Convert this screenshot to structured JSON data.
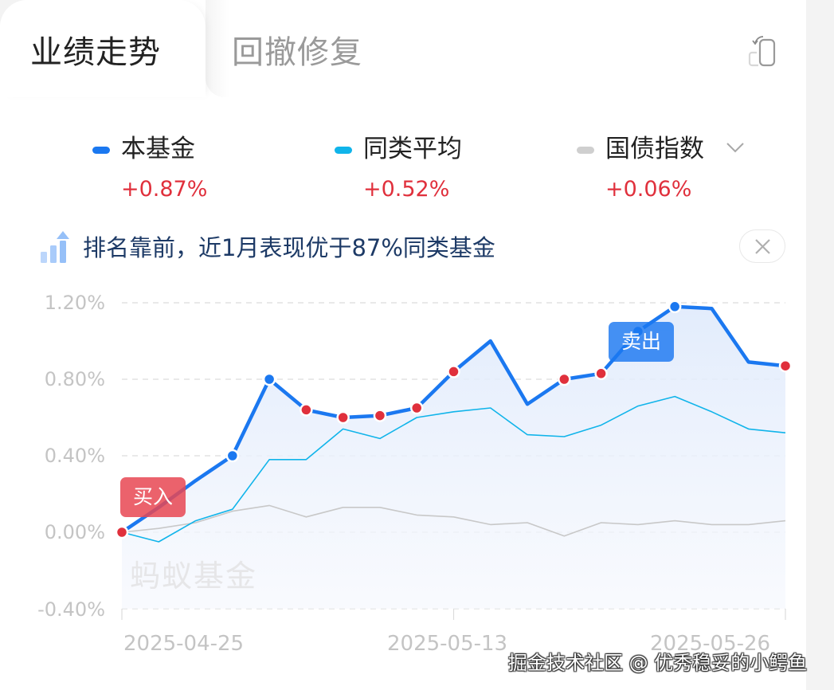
{
  "tabs": [
    {
      "label": "业绩走势",
      "active": true
    },
    {
      "label": "回撤修复",
      "active": false
    }
  ],
  "header_icon": "rotate-screen-icon",
  "legend": [
    {
      "name": "本基金",
      "value": "+0.87%",
      "color": "#1b78f0"
    },
    {
      "name": "同类平均",
      "value": "+0.52%",
      "color": "#10b4ea"
    },
    {
      "name": "国债指数",
      "value": "+0.06%",
      "color": "#cfcfcf",
      "has_dropdown": true
    }
  ],
  "notice": {
    "text": "排名靠前，近1月表现优于87%同类基金",
    "icon": "rising-bar-chart-icon",
    "close_icon": "close-icon"
  },
  "chart_watermark": "蚂蚁基金",
  "markers": {
    "buy": "买入",
    "sell": "卖出"
  },
  "footer_watermark": "掘金技术社区 @ 优秀稳妥的小鳄鱼",
  "chart_data": {
    "type": "line",
    "title": "业绩走势",
    "xlabel": "",
    "ylabel": "",
    "ylim": [
      -0.4,
      1.2
    ],
    "yticks": [
      "1.20%",
      "0.80%",
      "0.40%",
      "0.00%",
      "-0.40%"
    ],
    "xtick_labels": [
      "2025-04-25",
      "2025-05-13",
      "2025-05-26"
    ],
    "grid": true,
    "legend_position": "top",
    "x": [
      0,
      1,
      2,
      3,
      4,
      5,
      6,
      7,
      8,
      9,
      10,
      11,
      12,
      13,
      14,
      15,
      16,
      17,
      18
    ],
    "series": [
      {
        "name": "本基金",
        "color": "#1b78f0",
        "values": [
          0.0,
          0.13,
          0.27,
          0.4,
          0.8,
          0.64,
          0.6,
          0.61,
          0.65,
          0.84,
          1.0,
          0.67,
          0.8,
          0.83,
          1.05,
          1.18,
          1.17,
          0.89,
          0.87
        ]
      },
      {
        "name": "同类平均",
        "color": "#10b4ea",
        "values": [
          0.0,
          -0.05,
          0.06,
          0.12,
          0.38,
          0.38,
          0.54,
          0.49,
          0.6,
          0.63,
          0.65,
          0.51,
          0.5,
          0.56,
          0.66,
          0.71,
          0.63,
          0.54,
          0.52
        ]
      },
      {
        "name": "国债指数",
        "color": "#c8c8c8",
        "values": [
          0.0,
          0.02,
          0.05,
          0.11,
          0.14,
          0.08,
          0.13,
          0.13,
          0.09,
          0.08,
          0.04,
          0.05,
          -0.02,
          0.05,
          0.04,
          0.06,
          0.04,
          0.04,
          0.06
        ]
      }
    ],
    "red_dot_indices": [
      0,
      5,
      6,
      7,
      8,
      9,
      12,
      13,
      18
    ],
    "blue_dot_indices": [
      3,
      4,
      14,
      15
    ],
    "annotations": [
      {
        "label": "买入",
        "index": 0
      },
      {
        "label": "卖出",
        "index": 15
      }
    ]
  }
}
